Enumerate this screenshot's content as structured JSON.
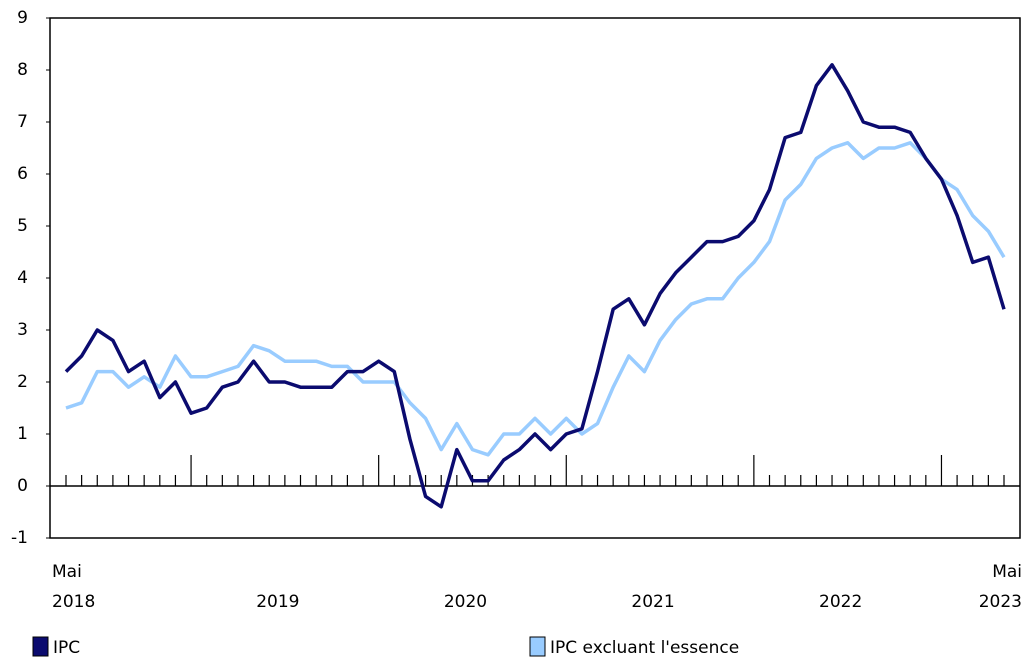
{
  "chart_data": {
    "type": "line",
    "categories": [
      "Mai",
      null,
      null,
      null,
      null,
      null,
      null,
      null,
      null,
      null,
      null,
      null,
      null,
      null,
      null,
      null,
      null,
      null,
      null,
      null,
      null,
      null,
      null,
      null,
      null,
      null,
      null,
      null,
      null,
      null,
      null,
      null,
      null,
      null,
      null,
      null,
      null,
      null,
      null,
      null,
      null,
      null,
      null,
      null,
      null,
      null,
      null,
      null,
      null,
      null,
      null,
      null,
      null,
      null,
      null,
      null,
      null,
      null,
      null,
      null,
      "Mai"
    ],
    "x_groups": [
      {
        "label": "2018",
        "start": 0,
        "end": 7
      },
      {
        "label": "2019",
        "start": 8,
        "end": 19
      },
      {
        "label": "2020",
        "start": 20,
        "end": 31
      },
      {
        "label": "2021",
        "start": 32,
        "end": 43
      },
      {
        "label": "2022",
        "start": 44,
        "end": 55
      },
      {
        "label": "2023",
        "start": 56,
        "end": 60
      }
    ],
    "series": [
      {
        "name": "IPC",
        "color": "#0b0b6f",
        "values": [
          2.2,
          2.5,
          3.0,
          2.8,
          2.2,
          2.4,
          1.7,
          2.0,
          1.4,
          1.5,
          1.9,
          2.0,
          2.4,
          2.0,
          2.0,
          1.9,
          1.9,
          1.9,
          2.2,
          2.2,
          2.4,
          2.2,
          0.9,
          -0.2,
          -0.4,
          0.7,
          0.1,
          0.1,
          0.5,
          0.7,
          1.0,
          0.7,
          1.0,
          1.1,
          2.2,
          3.4,
          3.6,
          3.1,
          3.7,
          4.1,
          4.4,
          4.7,
          4.7,
          4.8,
          5.1,
          5.7,
          6.7,
          6.8,
          7.7,
          8.1,
          7.6,
          7.0,
          6.9,
          6.9,
          6.8,
          6.3,
          5.9,
          5.2,
          4.3,
          4.4,
          3.4
        ]
      },
      {
        "name": "IPC excluant l'essence",
        "color": "#99ccff",
        "values": [
          1.5,
          1.6,
          2.2,
          2.2,
          1.9,
          2.1,
          1.9,
          2.5,
          2.1,
          2.1,
          2.2,
          2.3,
          2.7,
          2.6,
          2.4,
          2.4,
          2.4,
          2.3,
          2.3,
          2.0,
          2.0,
          2.0,
          1.6,
          1.3,
          0.7,
          1.2,
          0.7,
          0.6,
          1.0,
          1.0,
          1.3,
          1.0,
          1.3,
          1.0,
          1.2,
          1.9,
          2.5,
          2.2,
          2.8,
          3.2,
          3.5,
          3.6,
          3.6,
          4.0,
          4.3,
          4.7,
          5.5,
          5.8,
          6.3,
          6.5,
          6.6,
          6.3,
          6.5,
          6.5,
          6.6,
          6.3,
          5.9,
          5.7,
          5.2,
          4.9,
          4.4
        ]
      }
    ],
    "ylim": [
      -1,
      9
    ],
    "yticks": [
      -1,
      0,
      1,
      2,
      3,
      4,
      5,
      6,
      7,
      8,
      9
    ],
    "grid": false,
    "legend": "bottom"
  }
}
